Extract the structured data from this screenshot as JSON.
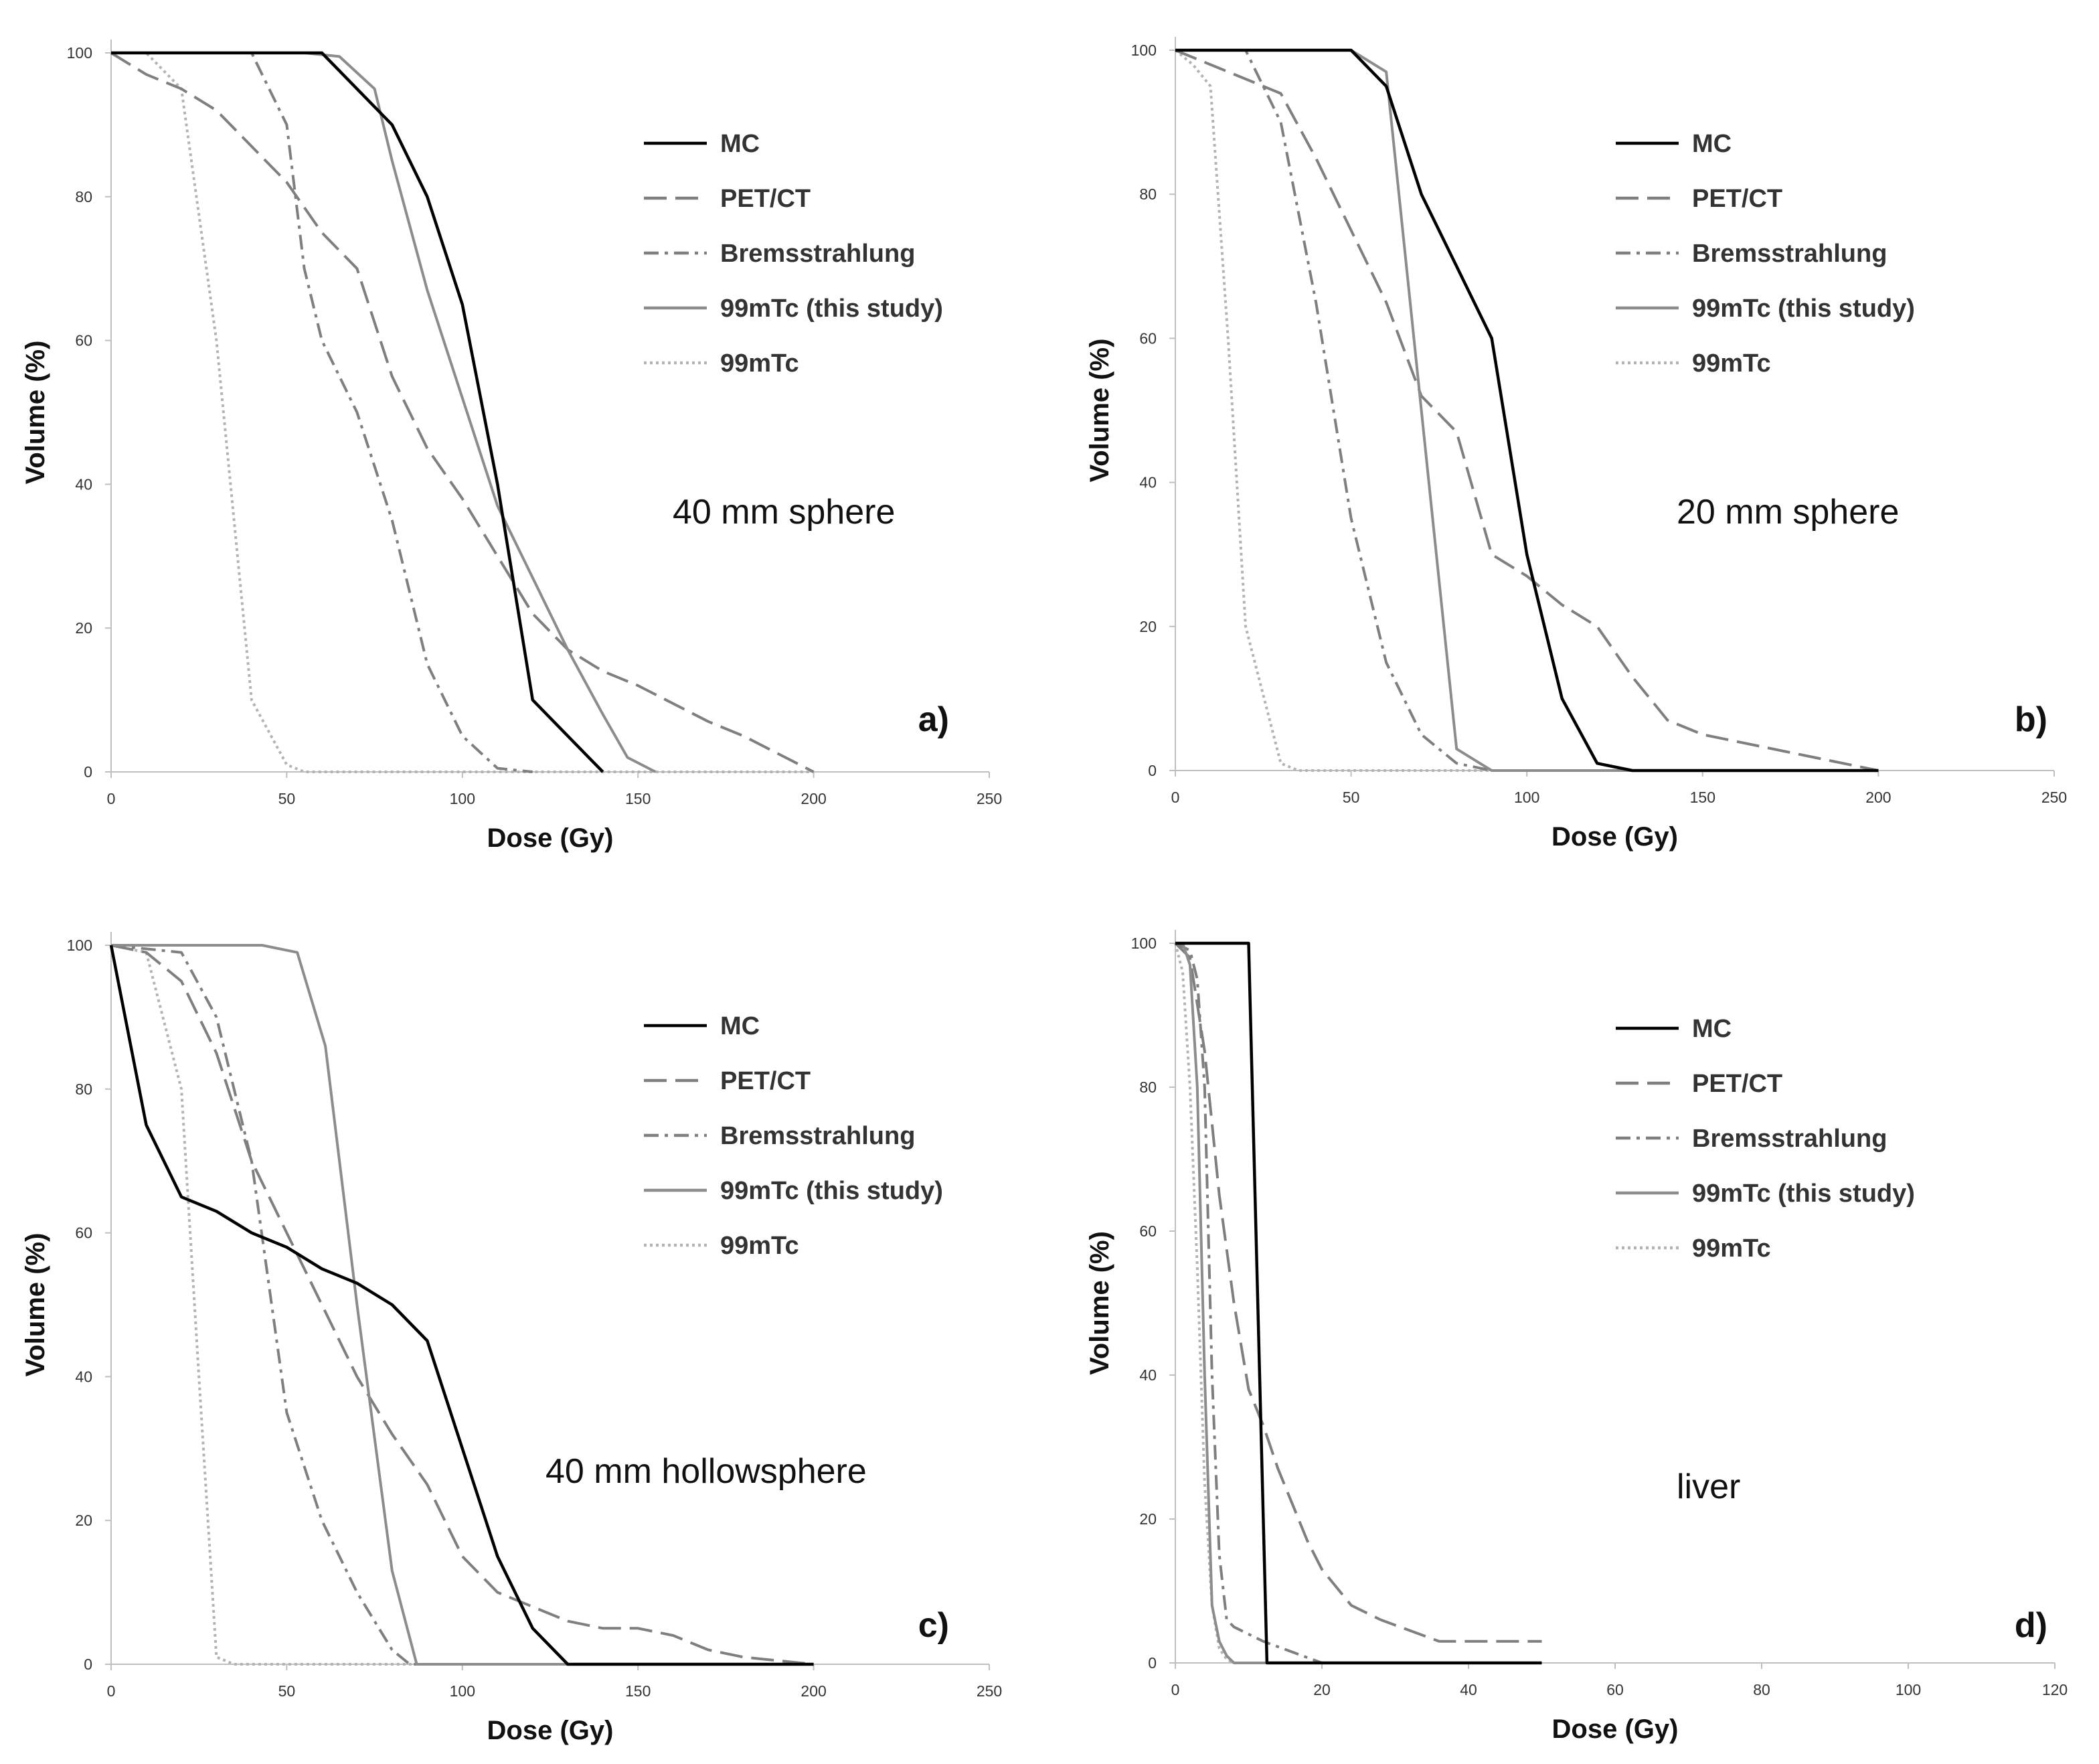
{
  "chart_data": [
    {
      "type": "line",
      "panel_label": "a)",
      "annotation": "40 mm sphere",
      "xlabel": "Dose (Gy)",
      "ylabel": "Volume (%)",
      "xlim": [
        0,
        250
      ],
      "ylim": [
        0,
        100
      ],
      "x_ticks": [
        "0",
        "50",
        "100",
        "150",
        "200",
        "250"
      ],
      "y_ticks": [
        "0",
        "20",
        "40",
        "60",
        "80",
        "100"
      ],
      "grid": false,
      "legend_position": "top-right",
      "series": [
        {
          "name": "MC",
          "style": "solid",
          "color": "#000000",
          "points": [
            [
              0,
              100
            ],
            [
              60,
              100
            ],
            [
              80,
              90
            ],
            [
              90,
              80
            ],
            [
              100,
              65
            ],
            [
              110,
              40
            ],
            [
              120,
              10
            ],
            [
              130,
              5
            ],
            [
              140,
              0
            ]
          ]
        },
        {
          "name": "PET/CT",
          "style": "dashed",
          "color": "#7f7f7f",
          "points": [
            [
              0,
              100
            ],
            [
              10,
              97
            ],
            [
              20,
              95
            ],
            [
              30,
              92
            ],
            [
              40,
              87
            ],
            [
              50,
              82
            ],
            [
              60,
              75
            ],
            [
              70,
              70
            ],
            [
              80,
              55
            ],
            [
              90,
              45
            ],
            [
              100,
              38
            ],
            [
              110,
              30
            ],
            [
              120,
              22
            ],
            [
              130,
              17
            ],
            [
              140,
              14
            ],
            [
              150,
              12
            ],
            [
              170,
              7
            ],
            [
              180,
              5
            ],
            [
              200,
              0
            ]
          ]
        },
        {
          "name": "Bremsstrahlung",
          "style": "dashdot",
          "color": "#7f7f7f",
          "points": [
            [
              0,
              100
            ],
            [
              40,
              100
            ],
            [
              50,
              90
            ],
            [
              55,
              70
            ],
            [
              60,
              60
            ],
            [
              70,
              50
            ],
            [
              80,
              35
            ],
            [
              90,
              15
            ],
            [
              100,
              5
            ],
            [
              110,
              0.5
            ],
            [
              120,
              0
            ]
          ]
        },
        {
          "name": "99mTc (this study)",
          "style": "solid",
          "color": "#8c8c8c",
          "points": [
            [
              0,
              100
            ],
            [
              55,
              100
            ],
            [
              65,
              99.5
            ],
            [
              75,
              95
            ],
            [
              80,
              85
            ],
            [
              90,
              67
            ],
            [
              100,
              52
            ],
            [
              110,
              37
            ],
            [
              120,
              27
            ],
            [
              130,
              17
            ],
            [
              140,
              8
            ],
            [
              147,
              2
            ],
            [
              155,
              0
            ]
          ]
        },
        {
          "name": "99mTc",
          "style": "dotted",
          "color": "#b3b3b3",
          "points": [
            [
              0,
              100
            ],
            [
              10,
              100
            ],
            [
              20,
              95
            ],
            [
              30,
              60
            ],
            [
              40,
              10
            ],
            [
              50,
              1
            ],
            [
              55,
              0
            ],
            [
              200,
              0
            ]
          ]
        }
      ]
    },
    {
      "type": "line",
      "panel_label": "b)",
      "annotation": "20 mm sphere",
      "xlabel": "Dose (Gy)",
      "ylabel": "Volume (%)",
      "xlim": [
        0,
        250
      ],
      "ylim": [
        0,
        100
      ],
      "x_ticks": [
        "0",
        "50",
        "100",
        "150",
        "200",
        "250"
      ],
      "y_ticks": [
        "0",
        "20",
        "40",
        "60",
        "80",
        "100"
      ],
      "grid": false,
      "legend_position": "top-right",
      "series": [
        {
          "name": "MC",
          "style": "solid",
          "color": "#000000",
          "points": [
            [
              0,
              100
            ],
            [
              50,
              100
            ],
            [
              60,
              95
            ],
            [
              70,
              80
            ],
            [
              80,
              70
            ],
            [
              90,
              60
            ],
            [
              100,
              30
            ],
            [
              110,
              10
            ],
            [
              120,
              1
            ],
            [
              130,
              0
            ],
            [
              200,
              0
            ]
          ]
        },
        {
          "name": "PET/CT",
          "style": "dashed",
          "color": "#7f7f7f",
          "points": [
            [
              0,
              100
            ],
            [
              10,
              98
            ],
            [
              20,
              96
            ],
            [
              30,
              94
            ],
            [
              40,
              85
            ],
            [
              50,
              75
            ],
            [
              60,
              65
            ],
            [
              70,
              52
            ],
            [
              80,
              47
            ],
            [
              90,
              30
            ],
            [
              100,
              27
            ],
            [
              110,
              23
            ],
            [
              120,
              20
            ],
            [
              130,
              13
            ],
            [
              140,
              7
            ],
            [
              150,
              5
            ],
            [
              180,
              2
            ],
            [
              200,
              0
            ]
          ]
        },
        {
          "name": "Bremsstrahlung",
          "style": "dashdot",
          "color": "#7f7f7f",
          "points": [
            [
              0,
              100
            ],
            [
              20,
              100
            ],
            [
              30,
              90
            ],
            [
              40,
              65
            ],
            [
              50,
              35
            ],
            [
              60,
              15
            ],
            [
              70,
              5
            ],
            [
              80,
              1
            ],
            [
              90,
              0
            ],
            [
              200,
              0
            ]
          ]
        },
        {
          "name": "99mTc (this study)",
          "style": "solid",
          "color": "#8c8c8c",
          "points": [
            [
              0,
              100
            ],
            [
              50,
              100
            ],
            [
              60,
              97
            ],
            [
              70,
              50
            ],
            [
              80,
              3
            ],
            [
              90,
              0
            ],
            [
              200,
              0
            ]
          ]
        },
        {
          "name": "99mTc",
          "style": "dotted",
          "color": "#b3b3b3",
          "points": [
            [
              0,
              100
            ],
            [
              5,
              98
            ],
            [
              10,
              95
            ],
            [
              15,
              60
            ],
            [
              20,
              20
            ],
            [
              30,
              1
            ],
            [
              35,
              0
            ],
            [
              200,
              0
            ]
          ]
        }
      ]
    },
    {
      "type": "line",
      "panel_label": "c)",
      "annotation": "40 mm hollowsphere",
      "xlabel": "Dose (Gy)",
      "ylabel": "Volume (%)",
      "xlim": [
        0,
        250
      ],
      "ylim": [
        0,
        100
      ],
      "x_ticks": [
        "0",
        "50",
        "100",
        "150",
        "200",
        "250"
      ],
      "y_ticks": [
        "0",
        "20",
        "40",
        "60",
        "80",
        "100"
      ],
      "grid": false,
      "legend_position": "top-right",
      "series": [
        {
          "name": "MC",
          "style": "solid",
          "color": "#000000",
          "points": [
            [
              0,
              100
            ],
            [
              10,
              75
            ],
            [
              20,
              65
            ],
            [
              30,
              63
            ],
            [
              40,
              60
            ],
            [
              50,
              58
            ],
            [
              60,
              55
            ],
            [
              70,
              53
            ],
            [
              80,
              50
            ],
            [
              90,
              45
            ],
            [
              100,
              30
            ],
            [
              110,
              15
            ],
            [
              120,
              5
            ],
            [
              130,
              0
            ],
            [
              200,
              0
            ]
          ]
        },
        {
          "name": "PET/CT",
          "style": "dashed",
          "color": "#7f7f7f",
          "points": [
            [
              0,
              100
            ],
            [
              10,
              99
            ],
            [
              20,
              95
            ],
            [
              30,
              85
            ],
            [
              40,
              70
            ],
            [
              50,
              60
            ],
            [
              60,
              50
            ],
            [
              70,
              40
            ],
            [
              80,
              32
            ],
            [
              90,
              25
            ],
            [
              100,
              15
            ],
            [
              110,
              10
            ],
            [
              120,
              8
            ],
            [
              130,
              6
            ],
            [
              140,
              5
            ],
            [
              150,
              5
            ],
            [
              160,
              4
            ],
            [
              170,
              2
            ],
            [
              180,
              1
            ],
            [
              200,
              0
            ]
          ]
        },
        {
          "name": "Bremsstrahlung",
          "style": "dashdot",
          "color": "#7f7f7f",
          "points": [
            [
              0,
              100
            ],
            [
              20,
              99
            ],
            [
              30,
              90
            ],
            [
              40,
              70
            ],
            [
              50,
              35
            ],
            [
              60,
              20
            ],
            [
              70,
              10
            ],
            [
              80,
              2
            ],
            [
              85,
              0
            ],
            [
              200,
              0
            ]
          ]
        },
        {
          "name": "99mTc (this study)",
          "style": "solid",
          "color": "#8c8c8c",
          "points": [
            [
              0,
              100
            ],
            [
              43,
              100
            ],
            [
              53,
              99
            ],
            [
              61,
              86
            ],
            [
              70,
              50
            ],
            [
              80,
              13
            ],
            [
              87,
              0
            ],
            [
              200,
              0
            ]
          ]
        },
        {
          "name": "99mTc",
          "style": "dotted",
          "color": "#b3b3b3",
          "points": [
            [
              0,
              100
            ],
            [
              10,
              99
            ],
            [
              20,
              80
            ],
            [
              25,
              40
            ],
            [
              30,
              1
            ],
            [
              35,
              0
            ],
            [
              200,
              0
            ]
          ]
        }
      ]
    },
    {
      "type": "line",
      "panel_label": "d)",
      "annotation": "liver",
      "xlabel": "Dose (Gy)",
      "ylabel": "Volume (%)",
      "xlim": [
        0,
        120
      ],
      "ylim": [
        0,
        100
      ],
      "x_ticks": [
        "0",
        "20",
        "40",
        "60",
        "80",
        "100",
        "120"
      ],
      "y_ticks": [
        "0",
        "20",
        "40",
        "60",
        "80",
        "100"
      ],
      "grid": false,
      "legend_position": "top-right",
      "series": [
        {
          "name": "MC",
          "style": "solid",
          "color": "#000000",
          "points": [
            [
              0,
              100
            ],
            [
              10,
              100
            ],
            [
              12.5,
              0
            ],
            [
              50,
              0
            ]
          ]
        },
        {
          "name": "PET/CT",
          "style": "dashed",
          "color": "#7f7f7f",
          "points": [
            [
              0,
              100
            ],
            [
              2,
              98
            ],
            [
              4,
              85
            ],
            [
              6,
              65
            ],
            [
              8,
              50
            ],
            [
              10,
              38
            ],
            [
              12,
              33
            ],
            [
              14,
              27
            ],
            [
              16,
              22
            ],
            [
              18,
              17
            ],
            [
              20,
              13
            ],
            [
              24,
              8
            ],
            [
              28,
              6
            ],
            [
              32,
              4.5
            ],
            [
              36,
              3
            ],
            [
              40,
              3
            ],
            [
              50,
              3
            ]
          ]
        },
        {
          "name": "Bremsstrahlung",
          "style": "dashdot",
          "color": "#7f7f7f",
          "points": [
            [
              0,
              100
            ],
            [
              2,
              99
            ],
            [
              3,
              95
            ],
            [
              4,
              80
            ],
            [
              5,
              40
            ],
            [
              6,
              15
            ],
            [
              7,
              6
            ],
            [
              8,
              5
            ],
            [
              12,
              3
            ],
            [
              16,
              1.5
            ],
            [
              20,
              0
            ],
            [
              50,
              0
            ]
          ]
        },
        {
          "name": "99mTc (this study)",
          "style": "solid",
          "color": "#8c8c8c",
          "points": [
            [
              0,
              100
            ],
            [
              1,
              100
            ],
            [
              2,
              97
            ],
            [
              3,
              80
            ],
            [
              4,
              40
            ],
            [
              5,
              8
            ],
            [
              6,
              3
            ],
            [
              7,
              1
            ],
            [
              8,
              0
            ],
            [
              50,
              0
            ]
          ]
        },
        {
          "name": "99mTc",
          "style": "dotted",
          "color": "#b3b3b3",
          "points": [
            [
              0,
              100
            ],
            [
              1,
              96
            ],
            [
              2,
              80
            ],
            [
              3,
              55
            ],
            [
              4,
              25
            ],
            [
              5,
              8
            ],
            [
              6,
              2
            ],
            [
              7,
              0.5
            ],
            [
              8,
              0
            ],
            [
              50,
              0
            ]
          ]
        }
      ]
    }
  ]
}
